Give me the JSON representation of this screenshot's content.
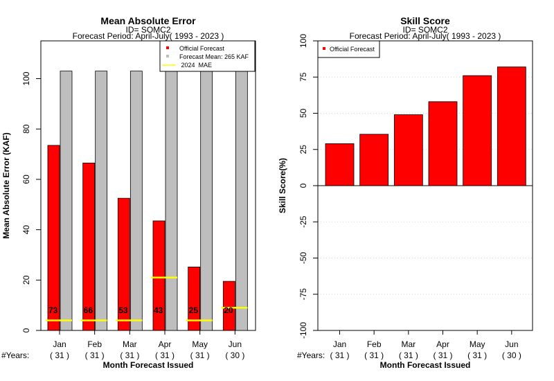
{
  "chart_data": [
    {
      "type": "bar",
      "title": "Mean Absolute Error",
      "subtitle_id": "ID= SOMC2",
      "subtitle_period": "Forecast Period: April-July( 1993 - 2023 )",
      "ylabel": "Mean Absolute Error (KAF)",
      "xlabel": "Month Forecast Issued",
      "ylim": [
        0,
        115
      ],
      "yticks": [
        "0",
        "20",
        "40",
        "60",
        "80",
        "100"
      ],
      "categories": [
        "Jan",
        "Feb",
        "Mar",
        "Apr",
        "May",
        "Jun"
      ],
      "years_prefix": "#Years:",
      "years": [
        "( 31 )",
        "( 31 )",
        "( 31 )",
        "( 31 )",
        "( 31 )",
        "( 30 )"
      ],
      "series": [
        {
          "name": "Official Forecast",
          "color": "#ff0000",
          "values": [
            73.5,
            66.5,
            52.5,
            43.5,
            25.2,
            19.5
          ]
        },
        {
          "name": "Forecast Mean: 265 KAF",
          "color": "#bebebe",
          "values": [
            103,
            103,
            103,
            103,
            103,
            106
          ]
        },
        {
          "name": " 2024  MAE",
          "color": "#ffff00",
          "values": [
            4,
            4,
            4,
            21,
            4,
            9
          ]
        }
      ],
      "data_labels": [
        "73",
        "66",
        "53",
        "43",
        "25",
        "20"
      ],
      "legend_position": "top-right"
    },
    {
      "type": "bar",
      "title": "Skill Score",
      "subtitle_id": "ID= SOMC2",
      "subtitle_period": "Forecast Period: April-July( 1993 - 2023 )",
      "ylabel": "Skill Score(%)",
      "xlabel": "Month Forecast Issued",
      "ylim": [
        -100,
        100
      ],
      "yticks": [
        "-100",
        "-75",
        "-50",
        "-25",
        "0",
        "25",
        "50",
        "75",
        "100"
      ],
      "grid": true,
      "categories": [
        "Jan",
        "Feb",
        "Mar",
        "Apr",
        "May",
        "Jun"
      ],
      "years_prefix": "#Years:",
      "years": [
        "( 31 )",
        "( 31 )",
        "( 31 )",
        "( 31 )",
        "( 31 )",
        "( 30 )"
      ],
      "series": [
        {
          "name": "Official Forecast",
          "color": "#ff0000",
          "values": [
            29,
            35.5,
            49,
            58,
            76,
            82
          ]
        }
      ],
      "legend_position": "top-left"
    }
  ]
}
